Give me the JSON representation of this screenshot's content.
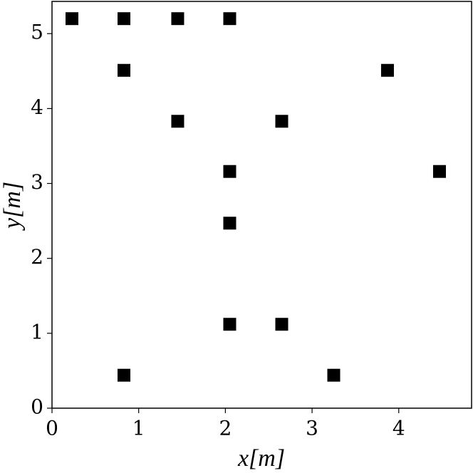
{
  "chart_data": {
    "type": "scatter",
    "x_label": "x[m]",
    "y_label": "y[m]",
    "x": [
      0.23,
      0.83,
      1.45,
      2.05,
      0.83,
      3.87,
      1.45,
      2.65,
      2.05,
      4.47,
      2.05,
      2.05,
      2.65,
      0.83,
      3.25
    ],
    "values": [
      5.2,
      5.2,
      5.2,
      5.2,
      4.51,
      4.51,
      3.83,
      3.83,
      3.16,
      3.16,
      2.47,
      1.12,
      1.12,
      0.44,
      0.44
    ],
    "color": "#000000",
    "marker": "square",
    "xlim": [
      0,
      4.84
    ],
    "xticks": [
      0,
      1,
      2,
      3,
      4
    ],
    "ylim": [
      0,
      5.43
    ],
    "yticks": [
      0,
      1,
      2,
      3,
      4,
      5
    ],
    "grid": false
  }
}
